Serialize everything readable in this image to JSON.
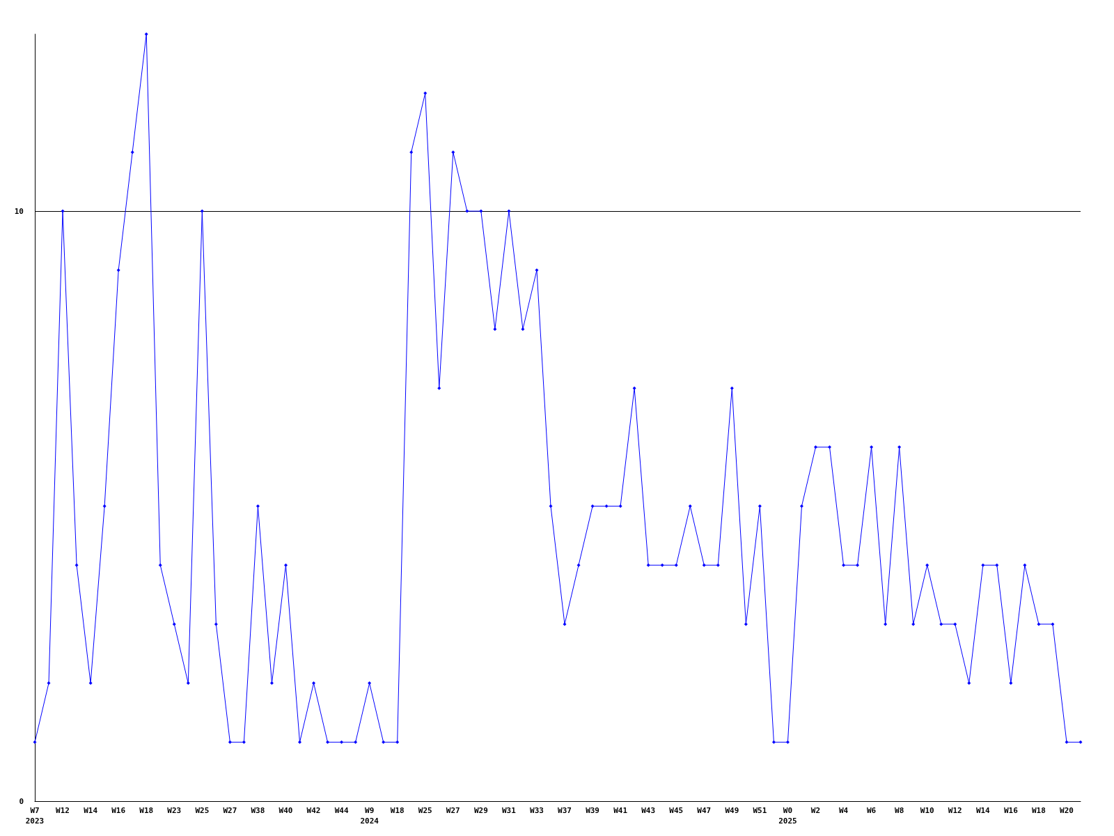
{
  "chart_data": {
    "type": "line",
    "categories": [
      "W7\n2023",
      null,
      "W12",
      null,
      "W14",
      null,
      "W16",
      null,
      "W18",
      null,
      "W23",
      null,
      "W25",
      null,
      "W27",
      null,
      "W38",
      null,
      "W40",
      null,
      "W42",
      null,
      "W44",
      null,
      "W9\n2024",
      null,
      "W18",
      null,
      "W25",
      null,
      "W27",
      null,
      "W29",
      null,
      "W31",
      null,
      "W33",
      null,
      "W37",
      null,
      "W39",
      null,
      "W41",
      null,
      "W43",
      null,
      "W45",
      null,
      "W47",
      null,
      "W49",
      null,
      "W51",
      null,
      "W0\n2025",
      null,
      "W2",
      null,
      "W4",
      null,
      "W6",
      null,
      "W8",
      null,
      "W10",
      null,
      "W12",
      null,
      "W14",
      null,
      "W16",
      null,
      "W18",
      null,
      "W20",
      null
    ],
    "series": [
      {
        "color": "#0000ff",
        "values": [
          1,
          2,
          10,
          4,
          2,
          5,
          9,
          11,
          13,
          4,
          3,
          2,
          10,
          3,
          1,
          1,
          5,
          2,
          4,
          1,
          2,
          1,
          1,
          1,
          2,
          1,
          1,
          11,
          12,
          7,
          11,
          10,
          10,
          8,
          10,
          8,
          9,
          5,
          3,
          4,
          5,
          5,
          5,
          7,
          4,
          4,
          4,
          5,
          4,
          4,
          7,
          3,
          5,
          1,
          1,
          5,
          6,
          6,
          4,
          4,
          6,
          3,
          6,
          3,
          4,
          3,
          3,
          2,
          4,
          4,
          2,
          4,
          3,
          3,
          1,
          1
        ]
      }
    ],
    "ylim": [
      0,
      13
    ],
    "yticks": [
      0,
      10
    ],
    "grid": "y",
    "marker": "diamond",
    "line_style": "solid"
  }
}
